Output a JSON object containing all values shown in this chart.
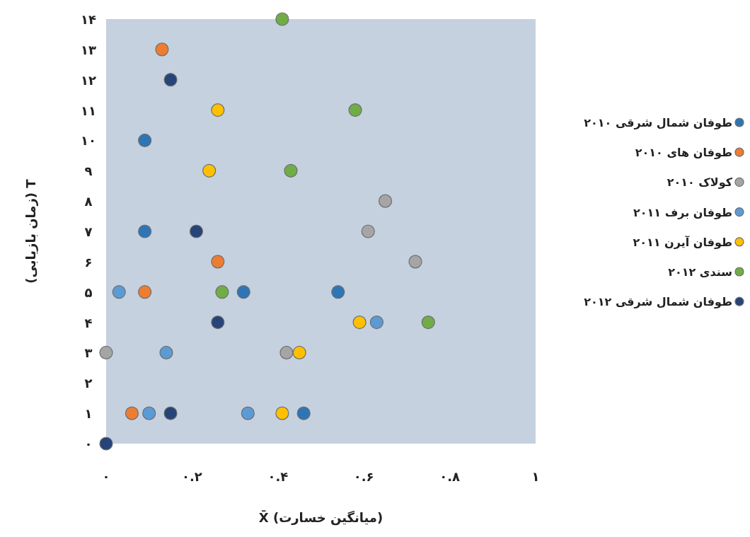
{
  "chart_data": {
    "type": "scatter",
    "xlabel": "X̄ (میانگین خسارت)",
    "ylabel": "T (زمان بازیابی)",
    "xlim": [
      0,
      1
    ],
    "ylim": [
      0,
      14
    ],
    "xticks": [
      {
        "value": 0,
        "label": "۰"
      },
      {
        "value": 0.2,
        "label": "۰.۲"
      },
      {
        "value": 0.4,
        "label": "۰.۴"
      },
      {
        "value": 0.6,
        "label": "۰.۶"
      },
      {
        "value": 0.8,
        "label": "۰.۸"
      },
      {
        "value": 1,
        "label": "۱"
      }
    ],
    "yticks": [
      {
        "value": 0,
        "label": "۰"
      },
      {
        "value": 1,
        "label": "۱"
      },
      {
        "value": 2,
        "label": "۲"
      },
      {
        "value": 3,
        "label": "۳"
      },
      {
        "value": 4,
        "label": "۴"
      },
      {
        "value": 5,
        "label": "۵"
      },
      {
        "value": 6,
        "label": "۶"
      },
      {
        "value": 7,
        "label": "۷"
      },
      {
        "value": 8,
        "label": "۸"
      },
      {
        "value": 9,
        "label": "۹"
      },
      {
        "value": 10,
        "label": "۱۰"
      },
      {
        "value": 11,
        "label": "۱۱"
      },
      {
        "value": 12,
        "label": "۱۲"
      },
      {
        "value": 13,
        "label": "۱۳"
      },
      {
        "value": 14,
        "label": "۱۴"
      }
    ],
    "marker": "circle",
    "legend": "right",
    "series": [
      {
        "name": "طوفان شمال شرقی ۲۰۱۰",
        "color": "#2e75b6",
        "x": [
          0.09,
          0.09,
          0.32,
          0.54,
          0.46
        ],
        "values": [
          10,
          7,
          5,
          5,
          1
        ]
      },
      {
        "name": "طوفان های ۲۰۱۰",
        "color": "#ed7d31",
        "x": [
          0.13,
          0.26,
          0.09,
          0.06
        ],
        "values": [
          13,
          6,
          5,
          1
        ]
      },
      {
        "name": "کولاک ۲۰۱۰",
        "color": "#a5a5a5",
        "x": [
          0.65,
          0.61,
          0.72,
          0.42,
          0.0
        ],
        "values": [
          8,
          7,
          6,
          3,
          3
        ]
      },
      {
        "name": "طوفان برف ۲۰۱۱",
        "color": "#5b9bd5",
        "x": [
          0.03,
          0.14,
          0.1,
          0.33,
          0.63
        ],
        "values": [
          5,
          3,
          1,
          1,
          4
        ]
      },
      {
        "name": "طوفان آیرن ۲۰۱۱",
        "color": "#ffc000",
        "x": [
          0.26,
          0.24,
          0.45,
          0.59,
          0.41
        ],
        "values": [
          11,
          9,
          3,
          4,
          1
        ]
      },
      {
        "name": "سندی ۲۰۱۲",
        "color": "#70ad47",
        "x": [
          0.41,
          0.58,
          0.43,
          0.27,
          0.75
        ],
        "values": [
          14,
          11,
          9,
          5,
          4
        ]
      },
      {
        "name": "طوفان شمال شرقی ۲۰۱۲",
        "color": "#264478",
        "x": [
          0.15,
          0.21,
          0.26,
          0.15,
          0.0
        ],
        "values": [
          12,
          7,
          4,
          1,
          0
        ]
      }
    ]
  }
}
